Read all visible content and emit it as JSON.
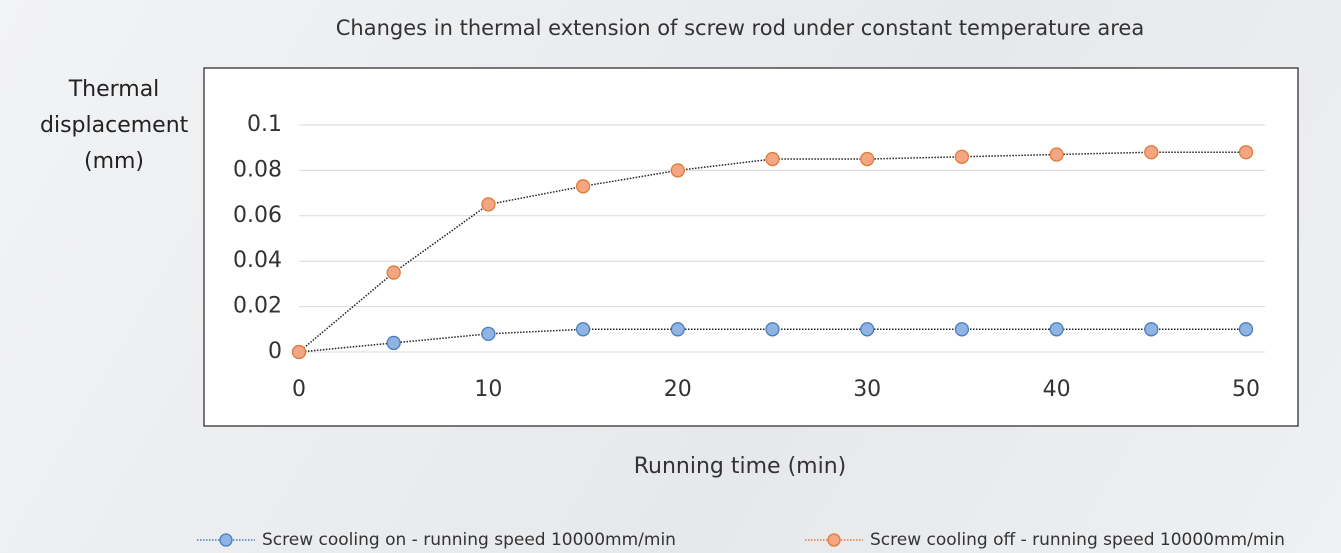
{
  "chart_data": {
    "type": "line",
    "title": "Changes in thermal extension of screw rod under constant temperature area",
    "x_label": "Running time (min)",
    "y_label": "Thermal displacement (mm)",
    "x": [
      0,
      5,
      10,
      15,
      20,
      25,
      30,
      35,
      40,
      45,
      50
    ],
    "series": [
      {
        "name": "Screw cooling on - running speed 10000mm/min",
        "color": "#8fb4e3",
        "values": [
          0,
          0.004,
          0.008,
          0.01,
          0.01,
          0.01,
          0.01,
          0.01,
          0.01,
          0.01,
          0.01
        ]
      },
      {
        "name": "Screw cooling off - running speed 10000mm/min",
        "color": "#f4a582",
        "values": [
          0,
          0.035,
          0.065,
          0.073,
          0.08,
          0.085,
          0.085,
          0.086,
          0.087,
          0.088,
          0.088
        ]
      }
    ],
    "xlim": [
      0,
      50
    ],
    "xticks": [
      0,
      10,
      20,
      30,
      40,
      50
    ],
    "ylim": [
      0,
      0.1
    ],
    "yticks": [
      0,
      0.02,
      0.04,
      0.06,
      0.08,
      0.1
    ],
    "grid": true,
    "legend": "bottom"
  }
}
